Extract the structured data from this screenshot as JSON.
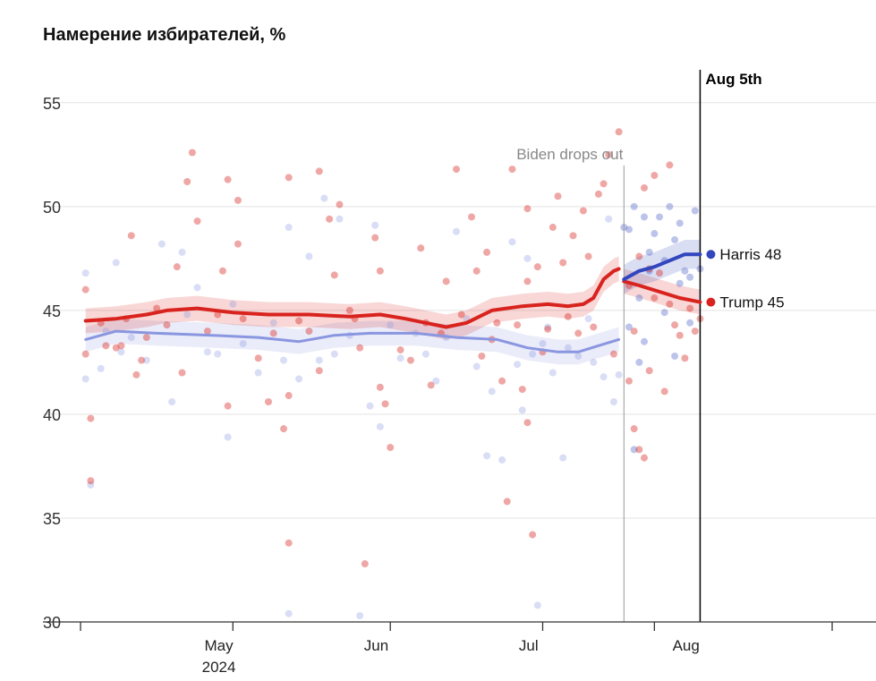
{
  "chart_data": {
    "type": "scatter",
    "title": "Намерение избирателей, %",
    "ylim": [
      30,
      56.5
    ],
    "yticks": [
      30,
      35,
      40,
      45,
      50,
      55
    ],
    "xlim": [
      "2024-04-05",
      "2024-08-31"
    ],
    "xtick_marks": [
      "2024-04-05",
      "2024-05-05",
      "2024-06-05",
      "2024-07-05",
      "2024-07-27",
      "2024-08-31"
    ],
    "xtick_labels": [
      {
        "date": "2024-05-01",
        "label": "May",
        "sublabel": "2024"
      },
      {
        "date": "2024-06-01",
        "label": "Jun",
        "sublabel": ""
      },
      {
        "date": "2024-07-01",
        "label": "Jul",
        "sublabel": ""
      },
      {
        "date": "2024-08-01",
        "label": "Aug",
        "sublabel": ""
      }
    ],
    "annotations": [
      {
        "date": "2024-07-21",
        "label": "Biden drops out",
        "color": "#888888"
      },
      {
        "date": "2024-08-05",
        "label": "Aug 5th",
        "color": "#000000"
      }
    ],
    "colors": {
      "trump": "#d8231e",
      "harris": "#3246be",
      "biden": "#8a96e0"
    },
    "series": [
      {
        "name": "Trump 45",
        "color": "#d8231e",
        "trend": [
          [
            "2024-04-06",
            44.5
          ],
          [
            "2024-04-12",
            44.6
          ],
          [
            "2024-04-18",
            44.8
          ],
          [
            "2024-04-22",
            45.0
          ],
          [
            "2024-04-28",
            45.1
          ],
          [
            "2024-05-05",
            44.9
          ],
          [
            "2024-05-12",
            44.8
          ],
          [
            "2024-05-20",
            44.8
          ],
          [
            "2024-05-28",
            44.7
          ],
          [
            "2024-06-03",
            44.8
          ],
          [
            "2024-06-08",
            44.6
          ],
          [
            "2024-06-12",
            44.4
          ],
          [
            "2024-06-16",
            44.2
          ],
          [
            "2024-06-20",
            44.4
          ],
          [
            "2024-06-25",
            45.0
          ],
          [
            "2024-07-01",
            45.2
          ],
          [
            "2024-07-06",
            45.3
          ],
          [
            "2024-07-10",
            45.2
          ],
          [
            "2024-07-13",
            45.3
          ],
          [
            "2024-07-15",
            45.6
          ],
          [
            "2024-07-17",
            46.5
          ],
          [
            "2024-07-19",
            46.9
          ],
          [
            "2024-07-20",
            47.0
          ]
        ],
        "trend2": [
          [
            "2024-07-21",
            46.4
          ],
          [
            "2024-07-24",
            46.2
          ],
          [
            "2024-07-28",
            45.9
          ],
          [
            "2024-08-01",
            45.6
          ],
          [
            "2024-08-05",
            45.4
          ]
        ],
        "points": [
          [
            "2024-04-06",
            46.0
          ],
          [
            "2024-04-06",
            42.9
          ],
          [
            "2024-04-07",
            39.8
          ],
          [
            "2024-04-07",
            36.8
          ],
          [
            "2024-04-09",
            44.4
          ],
          [
            "2024-04-10",
            43.3
          ],
          [
            "2024-04-12",
            43.2
          ],
          [
            "2024-04-13",
            43.3
          ],
          [
            "2024-04-14",
            44.6
          ],
          [
            "2024-04-15",
            48.6
          ],
          [
            "2024-04-16",
            41.9
          ],
          [
            "2024-04-17",
            42.6
          ],
          [
            "2024-04-18",
            43.7
          ],
          [
            "2024-04-20",
            45.1
          ],
          [
            "2024-04-22",
            44.3
          ],
          [
            "2024-04-24",
            47.1
          ],
          [
            "2024-04-25",
            42.0
          ],
          [
            "2024-04-26",
            51.2
          ],
          [
            "2024-04-27",
            52.6
          ],
          [
            "2024-04-28",
            49.3
          ],
          [
            "2024-04-30",
            44.0
          ],
          [
            "2024-05-02",
            44.8
          ],
          [
            "2024-05-03",
            46.9
          ],
          [
            "2024-05-04",
            51.3
          ],
          [
            "2024-05-04",
            40.4
          ],
          [
            "2024-05-06",
            50.3
          ],
          [
            "2024-05-06",
            48.2
          ],
          [
            "2024-05-07",
            44.6
          ],
          [
            "2024-05-10",
            42.7
          ],
          [
            "2024-05-12",
            40.6
          ],
          [
            "2024-05-13",
            43.9
          ],
          [
            "2024-05-15",
            39.3
          ],
          [
            "2024-05-16",
            51.4
          ],
          [
            "2024-05-16",
            33.8
          ],
          [
            "2024-05-16",
            40.9
          ],
          [
            "2024-05-18",
            44.5
          ],
          [
            "2024-05-20",
            44.0
          ],
          [
            "2024-05-22",
            51.7
          ],
          [
            "2024-05-22",
            42.1
          ],
          [
            "2024-05-24",
            49.4
          ],
          [
            "2024-05-25",
            46.7
          ],
          [
            "2024-05-26",
            50.1
          ],
          [
            "2024-05-28",
            45.0
          ],
          [
            "2024-05-29",
            44.6
          ],
          [
            "2024-05-30",
            43.2
          ],
          [
            "2024-05-31",
            32.8
          ],
          [
            "2024-06-02",
            48.5
          ],
          [
            "2024-06-03",
            46.9
          ],
          [
            "2024-06-03",
            41.3
          ],
          [
            "2024-06-04",
            40.5
          ],
          [
            "2024-06-05",
            38.4
          ],
          [
            "2024-06-07",
            43.1
          ],
          [
            "2024-06-09",
            42.6
          ],
          [
            "2024-06-11",
            48.0
          ],
          [
            "2024-06-12",
            44.4
          ],
          [
            "2024-06-13",
            41.4
          ],
          [
            "2024-06-15",
            43.9
          ],
          [
            "2024-06-16",
            46.4
          ],
          [
            "2024-06-18",
            51.8
          ],
          [
            "2024-06-19",
            44.8
          ],
          [
            "2024-06-21",
            49.5
          ],
          [
            "2024-06-22",
            46.9
          ],
          [
            "2024-06-23",
            42.8
          ],
          [
            "2024-06-24",
            47.8
          ],
          [
            "2024-06-25",
            43.6
          ],
          [
            "2024-06-26",
            44.4
          ],
          [
            "2024-06-27",
            41.6
          ],
          [
            "2024-06-28",
            35.8
          ],
          [
            "2024-06-29",
            51.8
          ],
          [
            "2024-06-30",
            44.3
          ],
          [
            "2024-07-01",
            41.2
          ],
          [
            "2024-07-02",
            49.9
          ],
          [
            "2024-07-02",
            46.4
          ],
          [
            "2024-07-02",
            39.6
          ],
          [
            "2024-07-03",
            34.2
          ],
          [
            "2024-07-04",
            47.1
          ],
          [
            "2024-07-05",
            43.0
          ],
          [
            "2024-07-06",
            44.1
          ],
          [
            "2024-07-07",
            49.0
          ],
          [
            "2024-07-08",
            50.5
          ],
          [
            "2024-07-09",
            47.3
          ],
          [
            "2024-07-10",
            44.7
          ],
          [
            "2024-07-11",
            48.6
          ],
          [
            "2024-07-12",
            43.9
          ],
          [
            "2024-07-13",
            49.8
          ],
          [
            "2024-07-14",
            47.6
          ],
          [
            "2024-07-15",
            44.2
          ],
          [
            "2024-07-16",
            50.6
          ],
          [
            "2024-07-17",
            51.1
          ],
          [
            "2024-07-18",
            52.5
          ],
          [
            "2024-07-19",
            42.9
          ],
          [
            "2024-07-20",
            53.6
          ],
          [
            "2024-07-22",
            46.2
          ],
          [
            "2024-07-22",
            41.6
          ],
          [
            "2024-07-23",
            44.0
          ],
          [
            "2024-07-23",
            39.3
          ],
          [
            "2024-07-24",
            47.6
          ],
          [
            "2024-07-24",
            38.3
          ],
          [
            "2024-07-25",
            50.9
          ],
          [
            "2024-07-25",
            37.9
          ],
          [
            "2024-07-26",
            47.0
          ],
          [
            "2024-07-26",
            42.1
          ],
          [
            "2024-07-27",
            51.5
          ],
          [
            "2024-07-27",
            45.6
          ],
          [
            "2024-07-28",
            46.8
          ],
          [
            "2024-07-29",
            41.1
          ],
          [
            "2024-07-30",
            45.3
          ],
          [
            "2024-07-30",
            52.0
          ],
          [
            "2024-07-31",
            44.3
          ],
          [
            "2024-08-01",
            43.8
          ],
          [
            "2024-08-02",
            42.7
          ],
          [
            "2024-08-03",
            45.1
          ],
          [
            "2024-08-04",
            44.0
          ],
          [
            "2024-08-05",
            44.6
          ]
        ]
      },
      {
        "name": "Harris 48",
        "color": "#3246be",
        "trend": [
          [
            "2024-07-21",
            46.5
          ],
          [
            "2024-07-24",
            46.9
          ],
          [
            "2024-07-27",
            47.1
          ],
          [
            "2024-07-30",
            47.4
          ],
          [
            "2024-08-02",
            47.7
          ],
          [
            "2024-08-05",
            47.7
          ]
        ],
        "points": [
          [
            "2024-07-21",
            49.0
          ],
          [
            "2024-07-22",
            48.9
          ],
          [
            "2024-07-23",
            50.0
          ],
          [
            "2024-07-24",
            42.5
          ],
          [
            "2024-07-25",
            49.5
          ],
          [
            "2024-07-26",
            47.8
          ],
          [
            "2024-07-27",
            48.7
          ],
          [
            "2024-07-28",
            49.5
          ],
          [
            "2024-07-29",
            47.4
          ],
          [
            "2024-07-30",
            50.0
          ],
          [
            "2024-07-31",
            48.4
          ],
          [
            "2024-08-01",
            49.2
          ],
          [
            "2024-08-02",
            46.9
          ],
          [
            "2024-08-03",
            46.6
          ],
          [
            "2024-08-04",
            49.8
          ],
          [
            "2024-08-05",
            47.0
          ],
          [
            "2024-07-22",
            44.2
          ],
          [
            "2024-07-24",
            45.6
          ],
          [
            "2024-07-26",
            46.9
          ],
          [
            "2024-07-29",
            44.9
          ],
          [
            "2024-07-31",
            42.8
          ],
          [
            "2024-08-01",
            46.3
          ],
          [
            "2024-08-03",
            44.4
          ],
          [
            "2024-07-23",
            38.3
          ],
          [
            "2024-07-25",
            43.5
          ]
        ]
      },
      {
        "name": "Biden",
        "color": "#8a96e0",
        "trend": [
          [
            "2024-04-06",
            43.6
          ],
          [
            "2024-04-12",
            44.0
          ],
          [
            "2024-04-20",
            43.9
          ],
          [
            "2024-05-01",
            43.8
          ],
          [
            "2024-05-10",
            43.7
          ],
          [
            "2024-05-18",
            43.5
          ],
          [
            "2024-05-25",
            43.8
          ],
          [
            "2024-06-01",
            43.9
          ],
          [
            "2024-06-10",
            43.9
          ],
          [
            "2024-06-18",
            43.7
          ],
          [
            "2024-06-26",
            43.6
          ],
          [
            "2024-07-02",
            43.2
          ],
          [
            "2024-07-08",
            43.0
          ],
          [
            "2024-07-12",
            43.0
          ],
          [
            "2024-07-16",
            43.3
          ],
          [
            "2024-07-20",
            43.6
          ]
        ],
        "points": [
          [
            "2024-04-06",
            46.8
          ],
          [
            "2024-04-06",
            41.7
          ],
          [
            "2024-04-07",
            36.6
          ],
          [
            "2024-04-09",
            42.2
          ],
          [
            "2024-04-10",
            44.0
          ],
          [
            "2024-04-12",
            47.3
          ],
          [
            "2024-04-13",
            43.0
          ],
          [
            "2024-04-15",
            43.7
          ],
          [
            "2024-04-18",
            42.6
          ],
          [
            "2024-04-21",
            48.2
          ],
          [
            "2024-04-23",
            40.6
          ],
          [
            "2024-04-25",
            47.8
          ],
          [
            "2024-04-26",
            44.8
          ],
          [
            "2024-04-28",
            46.1
          ],
          [
            "2024-04-30",
            43.0
          ],
          [
            "2024-05-02",
            42.9
          ],
          [
            "2024-05-04",
            38.9
          ],
          [
            "2024-05-05",
            45.3
          ],
          [
            "2024-05-07",
            43.4
          ],
          [
            "2024-05-10",
            42.0
          ],
          [
            "2024-05-13",
            44.4
          ],
          [
            "2024-05-15",
            42.6
          ],
          [
            "2024-05-16",
            49.0
          ],
          [
            "2024-05-16",
            30.4
          ],
          [
            "2024-05-18",
            41.7
          ],
          [
            "2024-05-20",
            47.6
          ],
          [
            "2024-05-22",
            42.6
          ],
          [
            "2024-05-23",
            50.4
          ],
          [
            "2024-05-25",
            42.9
          ],
          [
            "2024-05-26",
            49.4
          ],
          [
            "2024-05-28",
            43.8
          ],
          [
            "2024-05-30",
            30.3
          ],
          [
            "2024-06-01",
            40.4
          ],
          [
            "2024-06-02",
            49.1
          ],
          [
            "2024-06-03",
            39.4
          ],
          [
            "2024-06-05",
            44.3
          ],
          [
            "2024-06-07",
            42.7
          ],
          [
            "2024-06-10",
            43.9
          ],
          [
            "2024-06-12",
            42.9
          ],
          [
            "2024-06-14",
            41.6
          ],
          [
            "2024-06-16",
            43.7
          ],
          [
            "2024-06-18",
            48.8
          ],
          [
            "2024-06-20",
            44.6
          ],
          [
            "2024-06-22",
            42.3
          ],
          [
            "2024-06-24",
            38.0
          ],
          [
            "2024-06-25",
            41.1
          ],
          [
            "2024-06-27",
            37.8
          ],
          [
            "2024-06-29",
            48.3
          ],
          [
            "2024-06-30",
            42.4
          ],
          [
            "2024-07-01",
            40.2
          ],
          [
            "2024-07-02",
            47.5
          ],
          [
            "2024-07-03",
            42.9
          ],
          [
            "2024-07-04",
            30.8
          ],
          [
            "2024-07-05",
            43.4
          ],
          [
            "2024-07-06",
            44.2
          ],
          [
            "2024-07-07",
            42.0
          ],
          [
            "2024-07-09",
            37.9
          ],
          [
            "2024-07-10",
            43.2
          ],
          [
            "2024-07-12",
            42.8
          ],
          [
            "2024-07-14",
            44.6
          ],
          [
            "2024-07-15",
            42.5
          ],
          [
            "2024-07-17",
            41.8
          ],
          [
            "2024-07-18",
            49.4
          ],
          [
            "2024-07-19",
            40.6
          ],
          [
            "2024-07-20",
            41.9
          ]
        ]
      }
    ]
  }
}
